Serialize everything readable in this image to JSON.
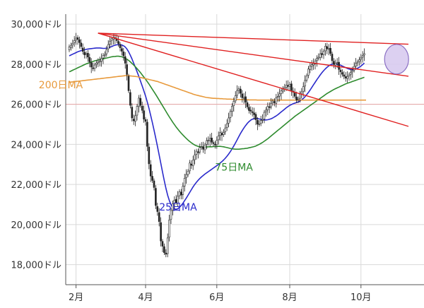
{
  "chart_data": {
    "type": "candlestick",
    "y_unit": "ドル",
    "ylim": [
      17000,
      30500
    ],
    "y_ticks": [
      {
        "value": 30000,
        "label": "30,000ドル"
      },
      {
        "value": 28000,
        "label": "28,000ドル"
      },
      {
        "value": 26000,
        "label": "26,000ドル"
      },
      {
        "value": 24000,
        "label": "24,000ドル"
      },
      {
        "value": 22000,
        "label": "22,000ドル"
      },
      {
        "value": 20000,
        "label": "20,000ドル"
      },
      {
        "value": 18000,
        "label": "18,000ドル"
      }
    ],
    "x_ticks": [
      {
        "index": 4,
        "label": "2月"
      },
      {
        "index": 45,
        "label": "4月"
      },
      {
        "index": 87,
        "label": "6月"
      },
      {
        "index": 130,
        "label": "8月"
      },
      {
        "index": 172,
        "label": "10月"
      }
    ],
    "grid": true,
    "candles": {
      "colors": {
        "up": "#ffffff",
        "down": "#222222",
        "wick": "#222222"
      },
      "close": [
        28870,
        28920,
        29040,
        29180,
        29300,
        29240,
        29080,
        28880,
        28640,
        28470,
        28530,
        28360,
        28120,
        27860,
        27780,
        27960,
        28060,
        28110,
        28150,
        28280,
        28440,
        28490,
        28730,
        28980,
        29150,
        29270,
        29340,
        29290,
        29180,
        29030,
        28820,
        28650,
        28420,
        28050,
        27490,
        26680,
        25950,
        25320,
        25180,
        25430,
        25900,
        26310,
        25950,
        25700,
        25260,
        25150,
        23900,
        23030,
        22420,
        22200,
        21850,
        20950,
        20650,
        20150,
        19180,
        18920,
        18600,
        18520,
        19330,
        20230,
        20700,
        21040,
        21220,
        21100,
        21410,
        21640,
        21470,
        21910,
        22310,
        22500,
        22650,
        23070,
        22960,
        23210,
        23480,
        23660,
        23600,
        23850,
        23890,
        23760,
        23970,
        24190,
        24210,
        24300,
        24110,
        24040,
        23970,
        24210,
        24420,
        24590,
        24470,
        24600,
        24820,
        25030,
        25320,
        25640,
        25900,
        26150,
        26430,
        26690,
        26780,
        26550,
        26330,
        26340,
        26110,
        25870,
        25690,
        25660,
        25600,
        25480,
        25230,
        25010,
        25020,
        25200,
        25240,
        25600,
        25710,
        25900,
        25860,
        26050,
        26160,
        26080,
        26330,
        26400,
        26520,
        26680,
        26750,
        26830,
        26960,
        26930,
        27000,
        26690,
        26600,
        26400,
        26210,
        26270,
        26510,
        26620,
        26880,
        27190,
        27420,
        27760,
        27910,
        27980,
        28030,
        28160,
        28290,
        28350,
        28520,
        28480,
        28640,
        28900,
        28770,
        28780,
        28540,
        28180,
        27990,
        28040,
        28080,
        27740,
        27620,
        27500,
        27400,
        27310,
        27390,
        27470,
        27590,
        27690,
        27890,
        28050,
        28110,
        28220,
        28320,
        28430,
        28530
      ],
      "open": [
        28720,
        28830,
        28960,
        29080,
        29210,
        29330,
        29220,
        29060,
        28810,
        28600,
        28490,
        28550,
        28340,
        28080,
        27820,
        27790,
        27990,
        28070,
        28130,
        28150,
        28310,
        28450,
        28520,
        28770,
        29000,
        29170,
        29250,
        29330,
        29260,
        29140,
        28990,
        28780,
        28620,
        28380,
        27980,
        27400,
        26590,
        25860,
        25260,
        25150,
        25460,
        25890,
        26300,
        25910,
        25680,
        25240,
        25110,
        23870,
        22990,
        22410,
        22180,
        21810,
        20900,
        20600,
        20100,
        19160,
        18900,
        18580,
        18550,
        19370,
        20270,
        20730,
        21070,
        21260,
        21060,
        21440,
        21620,
        21500,
        21920,
        22340,
        22480,
        22680,
        23020,
        22930,
        23240,
        23510,
        23630,
        23620,
        23880,
        23870,
        23730,
        24000,
        24210,
        24190,
        24320,
        24090,
        24010,
        23990,
        24230,
        24450,
        24560,
        24490,
        24630,
        24850,
        25060,
        25340,
        25660,
        25930,
        26170,
        26450,
        26700,
        26760,
        26520,
        26300,
        26380,
        26080,
        25850,
        25710,
        25630,
        25570,
        25500,
        25200,
        25000,
        25060,
        25230,
        25270,
        25630,
        25730,
        25880,
        25870,
        26080,
        26140,
        26050,
        26360,
        26410,
        26530,
        26660,
        26770,
        26850,
        26940,
        26900,
        27020,
        26660,
        26570,
        26370,
        26240,
        26300,
        26530,
        26650,
        26910,
        27210,
        27450,
        27730,
        27890,
        27960,
        28010,
        28180,
        28310,
        28340,
        28540,
        28470,
        28670,
        28880,
        28750,
        28800,
        28510,
        28150,
        27960,
        28060,
        28100,
        27710,
        27590,
        27470,
        27380,
        27290,
        27420,
        27500,
        27620,
        27710,
        27910,
        28070,
        28140,
        28250,
        28350,
        28460
      ]
    },
    "moving_averages": [
      {
        "name": "25日MA",
        "color": "#2a2acb",
        "values": [
          28420,
          28460,
          28500,
          28540,
          28580,
          28620,
          28650,
          28680,
          28700,
          28720,
          28740,
          28760,
          28770,
          28780,
          28790,
          28800,
          28810,
          28810,
          28810,
          28800,
          28790,
          28790,
          28800,
          28820,
          28850,
          28880,
          28920,
          28950,
          28970,
          28980,
          28980,
          28960,
          28920,
          28860,
          28760,
          28620,
          28450,
          28260,
          28050,
          27840,
          27620,
          27400,
          27160,
          26920,
          26670,
          26410,
          26120,
          25800,
          25450,
          25090,
          24710,
          24310,
          23900,
          23480,
          23050,
          22620,
          22200,
          21810,
          21470,
          21200,
          20990,
          20850,
          20780,
          20760,
          20790,
          20860,
          20950,
          21060,
          21190,
          21320,
          21460,
          21600,
          21740,
          21880,
          22000,
          22110,
          22210,
          22300,
          22380,
          22450,
          22520,
          22580,
          22640,
          22700,
          22760,
          22820,
          22880,
          22940,
          23000,
          23070,
          23140,
          23220,
          23310,
          23410,
          23520,
          23640,
          23780,
          23920,
          24070,
          24230,
          24390,
          24550,
          24690,
          24820,
          24940,
          25050,
          25140,
          25210,
          25260,
          25290,
          25300,
          25290,
          25270,
          25250,
          25230,
          25220,
          25220,
          25230,
          25250,
          25280,
          25320,
          25370,
          25420,
          25480,
          25550,
          25620,
          25690,
          25760,
          25830,
          25890,
          25950,
          25990,
          26030,
          26060,
          26090,
          26120,
          26160,
          26220,
          26290,
          26380,
          26480,
          26590,
          26710,
          26840,
          26970,
          27100,
          27230,
          27350,
          27470,
          27580,
          27680,
          27770,
          27850,
          27920,
          27970,
          28000,
          28010,
          28010,
          28000,
          27980,
          27950,
          27910,
          27870,
          27830,
          27790,
          27760,
          27740,
          27730,
          27740,
          27760,
          27800,
          27850,
          27910,
          27980,
          28060
        ]
      },
      {
        "name": "75日MA",
        "color": "#2e8b2e",
        "values": [
          27620,
          27660,
          27700,
          27740,
          27780,
          27820,
          27860,
          27900,
          27940,
          27980,
          28020,
          28050,
          28080,
          28110,
          28140,
          28170,
          28190,
          28210,
          28230,
          28250,
          28270,
          28290,
          28310,
          28330,
          28350,
          28370,
          28380,
          28390,
          28400,
          28400,
          28390,
          28370,
          28340,
          28300,
          28250,
          28190,
          28120,
          28040,
          27960,
          27870,
          27780,
          27680,
          27580,
          27470,
          27360,
          27250,
          27130,
          27010,
          26880,
          26750,
          26620,
          26490,
          26350,
          26210,
          26070,
          25930,
          25790,
          25650,
          25510,
          25370,
          25240,
          25110,
          24990,
          24870,
          24760,
          24660,
          24560,
          24470,
          24380,
          24300,
          24220,
          24150,
          24080,
          24020,
          23970,
          23930,
          23900,
          23880,
          23870,
          23870,
          23870,
          23870,
          23880,
          23880,
          23880,
          23890,
          23890,
          23900,
          23900,
          23900,
          23890,
          23880,
          23860,
          23840,
          23820,
          23800,
          23780,
          23770,
          23760,
          23760,
          23760,
          23770,
          23780,
          23790,
          23800,
          23810,
          23830,
          23850,
          23870,
          23890,
          23920,
          23960,
          24000,
          24050,
          24100,
          24160,
          24220,
          24280,
          24350,
          24420,
          24490,
          24560,
          24630,
          24700,
          24770,
          24840,
          24910,
          24980,
          25050,
          25120,
          25190,
          25260,
          25330,
          25400,
          25460,
          25520,
          25580,
          25640,
          25700,
          25760,
          25820,
          25880,
          25940,
          26000,
          26060,
          26120,
          26180,
          26240,
          26300,
          26360,
          26420,
          26480,
          26540,
          26590,
          26640,
          26690,
          26740,
          26780,
          26820,
          26860,
          26900,
          26940,
          26980,
          27020,
          27050,
          27080,
          27110,
          27140,
          27170,
          27200,
          27230,
          27260,
          27290,
          27320,
          27350
        ]
      },
      {
        "name": "200日MA",
        "color": "#e89a3c",
        "values": [
          27100,
          27110,
          27120,
          27130,
          27140,
          27150,
          27160,
          27170,
          27180,
          27190,
          27200,
          27210,
          27220,
          27230,
          27240,
          27250,
          27260,
          27270,
          27280,
          27290,
          27300,
          27310,
          27320,
          27330,
          27340,
          27350,
          27360,
          27370,
          27380,
          27390,
          27400,
          27410,
          27420,
          27430,
          27430,
          27430,
          27420,
          27410,
          27400,
          27390,
          27380,
          27360,
          27340,
          27320,
          27300,
          27280,
          27260,
          27240,
          27220,
          27200,
          27180,
          27160,
          27140,
          27110,
          27080,
          27050,
          27020,
          26990,
          26960,
          26930,
          26900,
          26870,
          26840,
          26810,
          26780,
          26750,
          26720,
          26690,
          26660,
          26630,
          26600,
          26570,
          26540,
          26510,
          26480,
          26460,
          26440,
          26420,
          26400,
          26380,
          26360,
          26340,
          26330,
          26320,
          26310,
          26300,
          26300,
          26290,
          26290,
          26280,
          26280,
          26270,
          26270,
          26260,
          26260,
          26260,
          26250,
          26250,
          26250,
          26240,
          26240,
          26240,
          26230,
          26230,
          26230,
          26230,
          26220,
          26220,
          26220,
          26220,
          26220,
          26210,
          26210,
          26210,
          26210,
          26210,
          26210,
          26210,
          26210,
          26210,
          26210,
          26210,
          26210,
          26210,
          26210,
          26210,
          26210,
          26210,
          26210,
          26210,
          26210,
          26210,
          26210,
          26210,
          26210,
          26210,
          26210,
          26210,
          26210,
          26210,
          26210,
          26210,
          26210,
          26210,
          26210,
          26210,
          26210,
          26210,
          26210,
          26210,
          26210,
          26210,
          26210,
          26210,
          26210,
          26210,
          26210,
          26210,
          26210,
          26210,
          26210,
          26210,
          26210,
          26210,
          26210,
          26210,
          26210,
          26210,
          26210,
          26210,
          26210,
          26210,
          26210,
          26210,
          26210,
          26210
        ]
      }
    ],
    "ma_labels": [
      {
        "text": "200日MA",
        "color": "#e89a3c",
        "index": -18,
        "value": 26800
      },
      {
        "text": "25日MA",
        "color": "#2a2acb",
        "index": 53,
        "value": 20700
      },
      {
        "text": "75日MA",
        "color": "#2e8b2e",
        "index": 86,
        "value": 22700
      }
    ],
    "trendlines": [
      {
        "color": "#e02020",
        "from": {
          "index": 17,
          "value": 29550
        },
        "to": {
          "index": 200,
          "value": 29000
        }
      },
      {
        "color": "#e02020",
        "from": {
          "index": 17,
          "value": 29550
        },
        "to": {
          "index": 200,
          "value": 27400
        }
      },
      {
        "color": "#e02020",
        "from": {
          "index": 17,
          "value": 29550
        },
        "to": {
          "index": 200,
          "value": 24900
        }
      }
    ],
    "reference_line": {
      "value": 26000,
      "color": "#e8a6a6"
    },
    "highlight": {
      "shape": "ellipse",
      "center": {
        "index": 193,
        "value": 28250
      },
      "fill": "#d6c8ee",
      "stroke": "#8a6fc4"
    }
  }
}
